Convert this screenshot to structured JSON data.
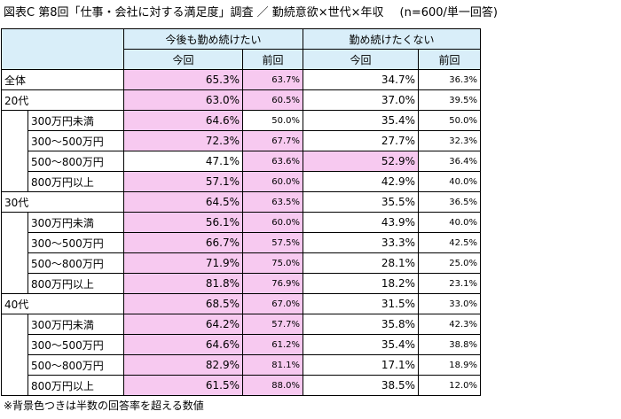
{
  "title": "図表C 第8回「仕事・会社に対する満足度」調査 ／ 勤続意欲×世代×年収",
  "subtitle": "(n=600/単一回答)",
  "headers": {
    "group1": "今後も勤め続けたい",
    "group2": "勤め続けたくない",
    "current": "今回",
    "previous": "前回"
  },
  "rows": [
    {
      "label": "全体",
      "level": 0,
      "a_now": "65.3%",
      "a_prev": "63.7%",
      "b_now": "34.7%",
      "b_prev": "36.3%",
      "a_hl": true,
      "a_prev_hl": true,
      "b_hl": false
    },
    {
      "label": "20代",
      "level": 0,
      "a_now": "63.0%",
      "a_prev": "60.5%",
      "b_now": "37.0%",
      "b_prev": "39.5%",
      "a_hl": true,
      "a_prev_hl": true,
      "b_hl": false
    },
    {
      "label": "300万円未満",
      "level": 1,
      "a_now": "64.6%",
      "a_prev": "50.0%",
      "b_now": "35.4%",
      "b_prev": "50.0%",
      "a_hl": true,
      "a_prev_hl": false,
      "b_hl": false
    },
    {
      "label": "300～500万円",
      "level": 1,
      "a_now": "72.3%",
      "a_prev": "67.7%",
      "b_now": "27.7%",
      "b_prev": "32.3%",
      "a_hl": true,
      "a_prev_hl": true,
      "b_hl": false
    },
    {
      "label": "500～800万円",
      "level": 1,
      "a_now": "47.1%",
      "a_prev": "63.6%",
      "b_now": "52.9%",
      "b_prev": "36.4%",
      "a_hl": false,
      "a_prev_hl": true,
      "b_hl": true
    },
    {
      "label": "800万円以上",
      "level": 1,
      "a_now": "57.1%",
      "a_prev": "60.0%",
      "b_now": "42.9%",
      "b_prev": "40.0%",
      "a_hl": true,
      "a_prev_hl": true,
      "b_hl": false
    },
    {
      "label": "30代",
      "level": 0,
      "a_now": "64.5%",
      "a_prev": "63.5%",
      "b_now": "35.5%",
      "b_prev": "36.5%",
      "a_hl": true,
      "a_prev_hl": true,
      "b_hl": false
    },
    {
      "label": "300万円未満",
      "level": 1,
      "a_now": "56.1%",
      "a_prev": "60.0%",
      "b_now": "43.9%",
      "b_prev": "40.0%",
      "a_hl": true,
      "a_prev_hl": true,
      "b_hl": false
    },
    {
      "label": "300～500万円",
      "level": 1,
      "a_now": "66.7%",
      "a_prev": "57.5%",
      "b_now": "33.3%",
      "b_prev": "42.5%",
      "a_hl": true,
      "a_prev_hl": true,
      "b_hl": false
    },
    {
      "label": "500～800万円",
      "level": 1,
      "a_now": "71.9%",
      "a_prev": "75.0%",
      "b_now": "28.1%",
      "b_prev": "25.0%",
      "a_hl": true,
      "a_prev_hl": true,
      "b_hl": false
    },
    {
      "label": "800万円以上",
      "level": 1,
      "a_now": "81.8%",
      "a_prev": "76.9%",
      "b_now": "18.2%",
      "b_prev": "23.1%",
      "a_hl": true,
      "a_prev_hl": true,
      "b_hl": false
    },
    {
      "label": "40代",
      "level": 0,
      "a_now": "68.5%",
      "a_prev": "67.0%",
      "b_now": "31.5%",
      "b_prev": "33.0%",
      "a_hl": true,
      "a_prev_hl": true,
      "b_hl": false
    },
    {
      "label": "300万円未満",
      "level": 1,
      "a_now": "64.2%",
      "a_prev": "57.7%",
      "b_now": "35.8%",
      "b_prev": "42.3%",
      "a_hl": true,
      "a_prev_hl": true,
      "b_hl": false
    },
    {
      "label": "300～500万円",
      "level": 1,
      "a_now": "64.6%",
      "a_prev": "61.2%",
      "b_now": "35.4%",
      "b_prev": "38.8%",
      "a_hl": true,
      "a_prev_hl": true,
      "b_hl": false
    },
    {
      "label": "500～800万円",
      "level": 1,
      "a_now": "82.9%",
      "a_prev": "81.1%",
      "b_now": "17.1%",
      "b_prev": "18.9%",
      "a_hl": true,
      "a_prev_hl": true,
      "b_hl": false
    },
    {
      "label": "800万円以上",
      "level": 1,
      "a_now": "61.5%",
      "a_prev": "88.0%",
      "b_now": "38.5%",
      "b_prev": "12.0%",
      "a_hl": true,
      "a_prev_hl": true,
      "b_hl": false
    }
  ],
  "note": "※背景色つきは半数の回答率を超える数値",
  "colors": {
    "header_bg": "#d9eef9",
    "highlight_bg": "#f7c9f0"
  }
}
